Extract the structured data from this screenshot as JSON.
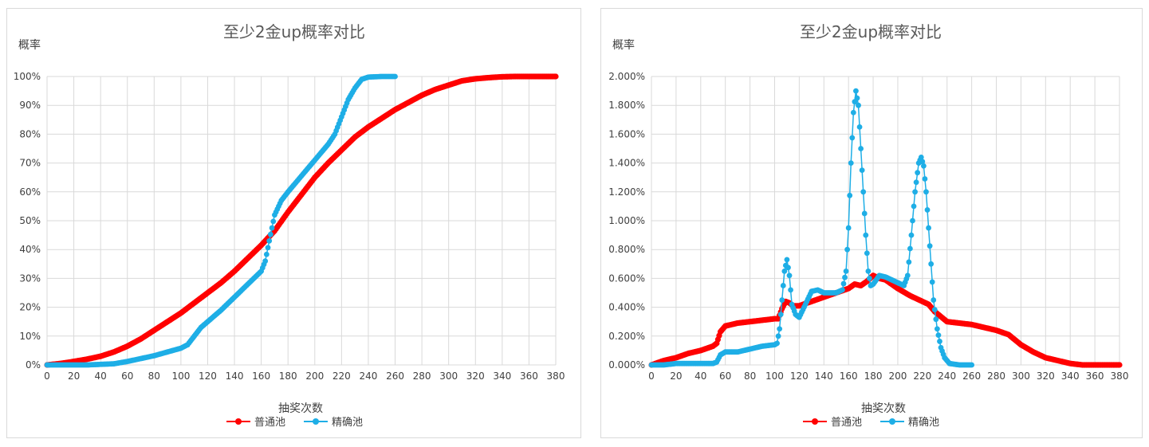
{
  "colors": {
    "series_normal": "#ff0000",
    "series_precise": "#1eaee6",
    "grid": "#d9d9d9",
    "text": "#404040"
  },
  "chart_data": [
    {
      "type": "line",
      "title": "至少2金up概率对比",
      "xlabel": "抽奖次数",
      "ylabel": "概率",
      "xlim": [
        0,
        380
      ],
      "ylim": [
        0,
        1
      ],
      "x_ticks": [
        "0",
        "20",
        "40",
        "60",
        "80",
        "100",
        "120",
        "140",
        "160",
        "180",
        "200",
        "220",
        "240",
        "260",
        "280",
        "300",
        "320",
        "340",
        "360",
        "380"
      ],
      "y_ticks": [
        "0%",
        "10%",
        "20%",
        "30%",
        "40%",
        "50%",
        "60%",
        "70%",
        "80%",
        "90%",
        "100%"
      ],
      "grid": true,
      "legend_position": "bottom",
      "series": [
        {
          "name": "普通池",
          "color": "#ff0000",
          "points": [
            [
              0,
              0
            ],
            [
              10,
              0.005
            ],
            [
              20,
              0.012
            ],
            [
              30,
              0.02
            ],
            [
              40,
              0.03
            ],
            [
              50,
              0.045
            ],
            [
              60,
              0.065
            ],
            [
              70,
              0.09
            ],
            [
              80,
              0.12
            ],
            [
              90,
              0.15
            ],
            [
              100,
              0.18
            ],
            [
              110,
              0.215
            ],
            [
              120,
              0.25
            ],
            [
              130,
              0.285
            ],
            [
              140,
              0.325
            ],
            [
              150,
              0.37
            ],
            [
              160,
              0.415
            ],
            [
              170,
              0.465
            ],
            [
              180,
              0.53
            ],
            [
              190,
              0.59
            ],
            [
              200,
              0.65
            ],
            [
              210,
              0.7
            ],
            [
              220,
              0.745
            ],
            [
              230,
              0.79
            ],
            [
              240,
              0.825
            ],
            [
              250,
              0.855
            ],
            [
              260,
              0.885
            ],
            [
              270,
              0.91
            ],
            [
              280,
              0.935
            ],
            [
              290,
              0.955
            ],
            [
              300,
              0.97
            ],
            [
              310,
              0.985
            ],
            [
              320,
              0.992
            ],
            [
              330,
              0.996
            ],
            [
              340,
              0.999
            ],
            [
              350,
              1
            ],
            [
              360,
              1
            ],
            [
              370,
              1
            ],
            [
              380,
              1
            ]
          ]
        },
        {
          "name": "精确池",
          "color": "#1eaee6",
          "points": [
            [
              0,
              0
            ],
            [
              10,
              0
            ],
            [
              20,
              0
            ],
            [
              30,
              0
            ],
            [
              40,
              0.002
            ],
            [
              50,
              0.004
            ],
            [
              60,
              0.012
            ],
            [
              70,
              0.022
            ],
            [
              80,
              0.032
            ],
            [
              90,
              0.045
            ],
            [
              100,
              0.058
            ],
            [
              105,
              0.07
            ],
            [
              110,
              0.1
            ],
            [
              115,
              0.13
            ],
            [
              120,
              0.15
            ],
            [
              130,
              0.19
            ],
            [
              140,
              0.235
            ],
            [
              150,
              0.28
            ],
            [
              160,
              0.325
            ],
            [
              163,
              0.36
            ],
            [
              166,
              0.43
            ],
            [
              170,
              0.52
            ],
            [
              175,
              0.57
            ],
            [
              180,
              0.6
            ],
            [
              190,
              0.655
            ],
            [
              200,
              0.71
            ],
            [
              210,
              0.765
            ],
            [
              215,
              0.8
            ],
            [
              220,
              0.86
            ],
            [
              225,
              0.92
            ],
            [
              230,
              0.96
            ],
            [
              235,
              0.99
            ],
            [
              240,
              0.998
            ],
            [
              250,
              1
            ],
            [
              260,
              1
            ]
          ]
        }
      ]
    },
    {
      "type": "line",
      "title": "至少2金up概率对比",
      "xlabel": "抽奖次数",
      "ylabel": "概率",
      "xlim": [
        0,
        380
      ],
      "ylim": [
        0,
        0.02
      ],
      "x_ticks": [
        "0",
        "20",
        "40",
        "60",
        "80",
        "100",
        "120",
        "140",
        "160",
        "180",
        "200",
        "220",
        "240",
        "260",
        "280",
        "300",
        "320",
        "340",
        "360",
        "380"
      ],
      "y_ticks": [
        "0.000%",
        "0.200%",
        "0.400%",
        "0.600%",
        "0.800%",
        "1.000%",
        "1.200%",
        "1.400%",
        "1.600%",
        "1.800%",
        "2.000%"
      ],
      "grid": true,
      "legend_position": "bottom",
      "series": [
        {
          "name": "普通池",
          "color": "#ff0000",
          "points": [
            [
              0,
              0
            ],
            [
              10,
              0.0003
            ],
            [
              20,
              0.0005
            ],
            [
              30,
              0.0008
            ],
            [
              40,
              0.001
            ],
            [
              50,
              0.0013
            ],
            [
              53,
              0.0015
            ],
            [
              56,
              0.0023
            ],
            [
              60,
              0.0027
            ],
            [
              70,
              0.0029
            ],
            [
              80,
              0.003
            ],
            [
              90,
              0.0031
            ],
            [
              100,
              0.0032
            ],
            [
              103,
              0.0032
            ],
            [
              106,
              0.0039
            ],
            [
              109,
              0.0044
            ],
            [
              112,
              0.0043
            ],
            [
              115,
              0.0041
            ],
            [
              120,
              0.0041
            ],
            [
              130,
              0.0044
            ],
            [
              140,
              0.0047
            ],
            [
              150,
              0.005
            ],
            [
              160,
              0.0053
            ],
            [
              165,
              0.0056
            ],
            [
              170,
              0.0055
            ],
            [
              175,
              0.0058
            ],
            [
              180,
              0.0062
            ],
            [
              185,
              0.006
            ],
            [
              190,
              0.0059
            ],
            [
              200,
              0.0053
            ],
            [
              210,
              0.0048
            ],
            [
              220,
              0.0044
            ],
            [
              225,
              0.0042
            ],
            [
              230,
              0.0037
            ],
            [
              240,
              0.003
            ],
            [
              250,
              0.0029
            ],
            [
              260,
              0.0028
            ],
            [
              270,
              0.0026
            ],
            [
              280,
              0.0024
            ],
            [
              290,
              0.0021
            ],
            [
              300,
              0.0014
            ],
            [
              310,
              0.0009
            ],
            [
              320,
              0.0005
            ],
            [
              330,
              0.0003
            ],
            [
              340,
              0.0001
            ],
            [
              350,
              0
            ],
            [
              360,
              0
            ],
            [
              370,
              0
            ],
            [
              380,
              0
            ]
          ]
        },
        {
          "name": "精确池",
          "color": "#1eaee6",
          "points": [
            [
              0,
              0
            ],
            [
              10,
              0
            ],
            [
              20,
              0.0001
            ],
            [
              30,
              0.0001
            ],
            [
              40,
              0.0001
            ],
            [
              50,
              0.0001
            ],
            [
              53,
              0.0002
            ],
            [
              56,
              0.0007
            ],
            [
              60,
              0.0009
            ],
            [
              70,
              0.0009
            ],
            [
              80,
              0.0011
            ],
            [
              90,
              0.0013
            ],
            [
              100,
              0.0014
            ],
            [
              102,
              0.0015
            ],
            [
              104,
              0.0025
            ],
            [
              106,
              0.0045
            ],
            [
              108,
              0.0065
            ],
            [
              110,
              0.0073
            ],
            [
              112,
              0.0062
            ],
            [
              114,
              0.0042
            ],
            [
              117,
              0.0035
            ],
            [
              120,
              0.0033
            ],
            [
              125,
              0.0042
            ],
            [
              130,
              0.0051
            ],
            [
              135,
              0.0052
            ],
            [
              140,
              0.005
            ],
            [
              150,
              0.005
            ],
            [
              155,
              0.0052
            ],
            [
              158,
              0.0065
            ],
            [
              160,
              0.0095
            ],
            [
              162,
              0.014
            ],
            [
              164,
              0.0175
            ],
            [
              166,
              0.019
            ],
            [
              168,
              0.018
            ],
            [
              170,
              0.015
            ],
            [
              172,
              0.012
            ],
            [
              174,
              0.009
            ],
            [
              176,
              0.0065
            ],
            [
              178,
              0.0055
            ],
            [
              180,
              0.0056
            ],
            [
              185,
              0.0062
            ],
            [
              190,
              0.0061
            ],
            [
              195,
              0.0059
            ],
            [
              200,
              0.0057
            ],
            [
              205,
              0.0055
            ],
            [
              208,
              0.0062
            ],
            [
              211,
              0.009
            ],
            [
              214,
              0.012
            ],
            [
              217,
              0.014
            ],
            [
              219,
              0.0144
            ],
            [
              221,
              0.0138
            ],
            [
              223,
              0.012
            ],
            [
              225,
              0.0095
            ],
            [
              227,
              0.007
            ],
            [
              229,
              0.0045
            ],
            [
              232,
              0.0025
            ],
            [
              235,
              0.0012
            ],
            [
              238,
              0.0005
            ],
            [
              242,
              0.0001
            ],
            [
              250,
              0
            ],
            [
              260,
              0
            ]
          ]
        }
      ]
    }
  ]
}
